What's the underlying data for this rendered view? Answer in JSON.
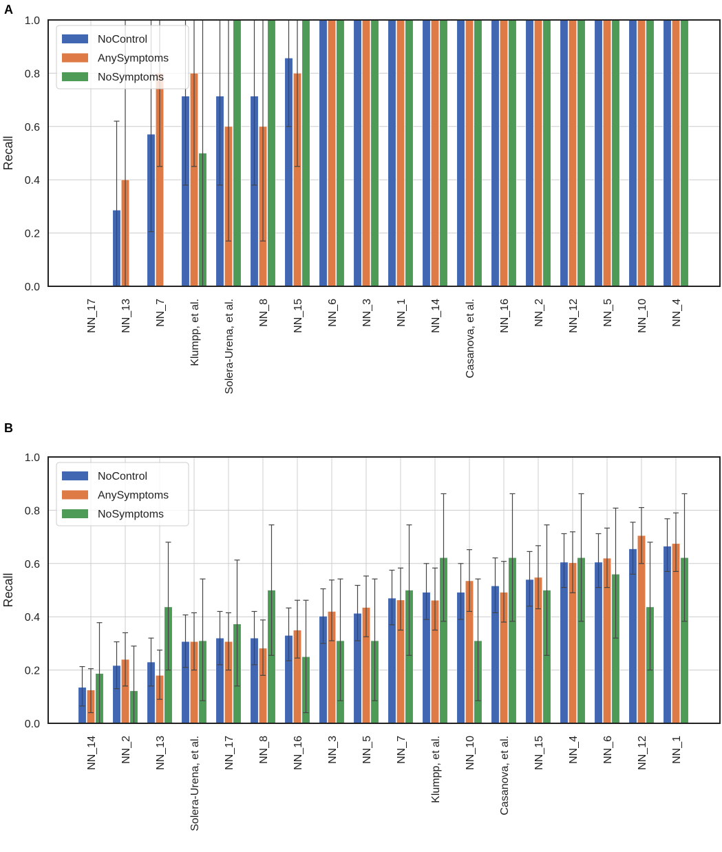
{
  "colors": {
    "NoControl": "#4267b2",
    "AnySymptoms": "#dd7a45",
    "NoSymptoms": "#4e9b58",
    "errorbar": "#444444",
    "grid": "#cccccc",
    "frame": "#222222"
  },
  "chart_data": [
    {
      "panel": "A",
      "type": "bar",
      "ylabel": "Recall",
      "xlabel": "",
      "ylim": [
        0,
        1
      ],
      "yticks": [
        "0.0",
        "0.2",
        "0.4",
        "0.6",
        "0.8",
        "1.0"
      ],
      "legend_position": "top-left",
      "categories": [
        "NN_17",
        "NN_13",
        "NN_7",
        "Klumpp, et al.",
        "Solera-Urena, et al.",
        "NN_8",
        "NN_15",
        "NN_6",
        "NN_3",
        "NN_1",
        "NN_14",
        "Casanova, et al.",
        "NN_16",
        "NN_2",
        "NN_12",
        "NN_5",
        "NN_10",
        "NN_4"
      ],
      "series": [
        {
          "name": "NoControl",
          "values": [
            0,
            0.286,
            0.571,
            0.714,
            0.714,
            0.714,
            0.857,
            1,
            1,
            1,
            1,
            1,
            1,
            1,
            1,
            1,
            1,
            1
          ],
          "err_low": [
            null,
            0.0,
            0.205,
            0.38,
            0.38,
            0.38,
            0.6,
            null,
            null,
            null,
            null,
            null,
            null,
            null,
            null,
            null,
            null,
            null
          ],
          "err_high": [
            null,
            0.62,
            1.0,
            1.0,
            1.0,
            1.0,
            1.0,
            null,
            null,
            null,
            null,
            null,
            null,
            null,
            null,
            null,
            null,
            null
          ]
        },
        {
          "name": "AnySymptoms",
          "values": [
            0,
            0.4,
            0.8,
            0.8,
            0.6,
            0.6,
            0.8,
            1,
            1,
            1,
            1,
            1,
            1,
            1,
            1,
            1,
            1,
            1
          ],
          "err_low": [
            null,
            0.0,
            0.45,
            0.45,
            0.17,
            0.17,
            0.45,
            null,
            null,
            null,
            null,
            null,
            null,
            null,
            null,
            null,
            null,
            null
          ],
          "err_high": [
            null,
            1.0,
            1.0,
            1.0,
            1.0,
            1.0,
            1.0,
            null,
            null,
            null,
            null,
            null,
            null,
            null,
            null,
            null,
            null,
            null
          ]
        },
        {
          "name": "NoSymptoms",
          "values": [
            0,
            0,
            0,
            0.5,
            1,
            1,
            1,
            1,
            1,
            1,
            1,
            1,
            1,
            1,
            1,
            1,
            1,
            1
          ],
          "err_low": [
            null,
            null,
            null,
            0.0,
            null,
            null,
            null,
            null,
            null,
            null,
            null,
            null,
            null,
            null,
            null,
            null,
            null,
            null
          ],
          "err_high": [
            null,
            null,
            null,
            1.0,
            null,
            null,
            null,
            null,
            null,
            null,
            null,
            null,
            null,
            null,
            null,
            null,
            null,
            null
          ]
        }
      ]
    },
    {
      "panel": "B",
      "type": "bar",
      "ylabel": "Recall",
      "xlabel": "",
      "ylim": [
        0,
        1
      ],
      "yticks": [
        "0.0",
        "0.2",
        "0.4",
        "0.6",
        "0.8",
        "1.0"
      ],
      "legend_position": "top-left",
      "categories": [
        "NN_14",
        "NN_2",
        "NN_13",
        "Solera-Urena, et al.",
        "NN_17",
        "NN_8",
        "NN_16",
        "NN_3",
        "NN_5",
        "NN_7",
        "Klumpp, et al.",
        "NN_10",
        "Casanova, et al.",
        "NN_15",
        "NN_4",
        "NN_6",
        "NN_12",
        "NN_1"
      ],
      "series": [
        {
          "name": "NoControl",
          "values": [
            0.135,
            0.217,
            0.23,
            0.307,
            0.32,
            0.32,
            0.33,
            0.402,
            0.413,
            0.47,
            0.492,
            0.492,
            0.516,
            0.54,
            0.605,
            0.605,
            0.655,
            0.665
          ],
          "err_low": [
            0.065,
            0.13,
            0.14,
            0.21,
            0.22,
            0.22,
            0.235,
            0.3,
            0.31,
            0.37,
            0.39,
            0.39,
            0.415,
            0.44,
            0.51,
            0.51,
            0.56,
            0.57
          ],
          "err_high": [
            0.213,
            0.306,
            0.32,
            0.407,
            0.42,
            0.42,
            0.433,
            0.505,
            0.518,
            0.575,
            0.6,
            0.6,
            0.621,
            0.645,
            0.712,
            0.712,
            0.755,
            0.768
          ]
        },
        {
          "name": "AnySymptoms",
          "values": [
            0.125,
            0.24,
            0.18,
            0.307,
            0.307,
            0.282,
            0.35,
            0.42,
            0.435,
            0.463,
            0.462,
            0.535,
            0.492,
            0.548,
            0.603,
            0.62,
            0.705,
            0.675
          ],
          "err_low": [
            0.04,
            0.14,
            0.09,
            0.2,
            0.2,
            0.18,
            0.245,
            0.31,
            0.325,
            0.35,
            0.35,
            0.42,
            0.38,
            0.43,
            0.49,
            0.51,
            0.6,
            0.57
          ],
          "err_high": [
            0.205,
            0.34,
            0.275,
            0.415,
            0.415,
            0.388,
            0.462,
            0.538,
            0.553,
            0.583,
            0.583,
            0.652,
            0.608,
            0.667,
            0.719,
            0.733,
            0.81,
            0.79
          ]
        },
        {
          "name": "NoSymptoms",
          "values": [
            0.187,
            0.122,
            0.437,
            0.31,
            0.373,
            0.5,
            0.25,
            0.31,
            0.31,
            0.5,
            0.622,
            0.31,
            0.622,
            0.5,
            0.622,
            0.56,
            0.437,
            0.622
          ],
          "err_low": [
            0.0,
            0.0,
            0.2,
            0.085,
            0.14,
            0.255,
            0.04,
            0.085,
            0.085,
            0.255,
            0.383,
            0.085,
            0.383,
            0.255,
            0.383,
            0.32,
            0.2,
            0.383
          ],
          "err_high": [
            0.378,
            0.29,
            0.68,
            0.542,
            0.613,
            0.745,
            0.462,
            0.542,
            0.542,
            0.745,
            0.862,
            0.542,
            0.862,
            0.745,
            0.862,
            0.808,
            0.68,
            0.862
          ]
        }
      ]
    }
  ]
}
